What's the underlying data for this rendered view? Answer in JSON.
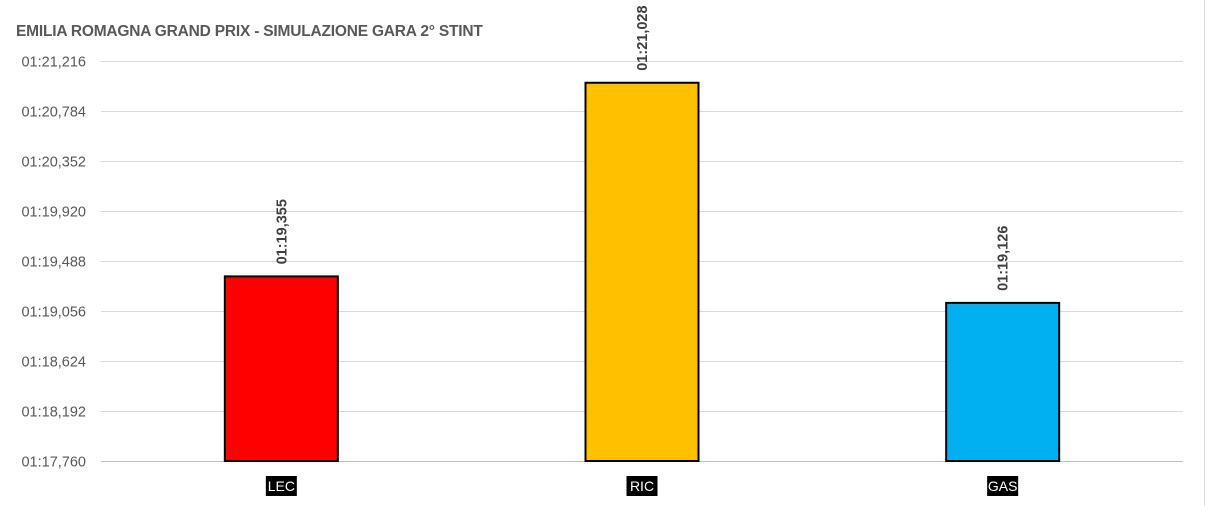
{
  "chart_data": {
    "type": "bar",
    "title": "EMILIA ROMAGNA GRAND PRIX - SIMULAZIONE GARA 2° STINT",
    "xlabel": "",
    "ylabel": "",
    "categories": [
      "LEC",
      "RIC",
      "GAS"
    ],
    "values": [
      79.355,
      81.028,
      79.126
    ],
    "value_labels": [
      "01:19,355",
      "01:21,028",
      "01:19,126"
    ],
    "bar_colors": [
      "#ff0000",
      "#ffc000",
      "#00b0f0"
    ],
    "bar_border_color": "#000000",
    "ylim": [
      77.76,
      81.216
    ],
    "yticks": [
      77.76,
      78.192,
      78.624,
      79.056,
      79.488,
      79.92,
      80.352,
      80.784,
      81.216
    ],
    "ytick_labels": [
      "01:17,760",
      "01:18,192",
      "01:18,624",
      "01:19,056",
      "01:19,488",
      "01:19,920",
      "01:20,352",
      "01:20,784",
      "01:21,216"
    ],
    "grid": true,
    "legend": "none"
  }
}
